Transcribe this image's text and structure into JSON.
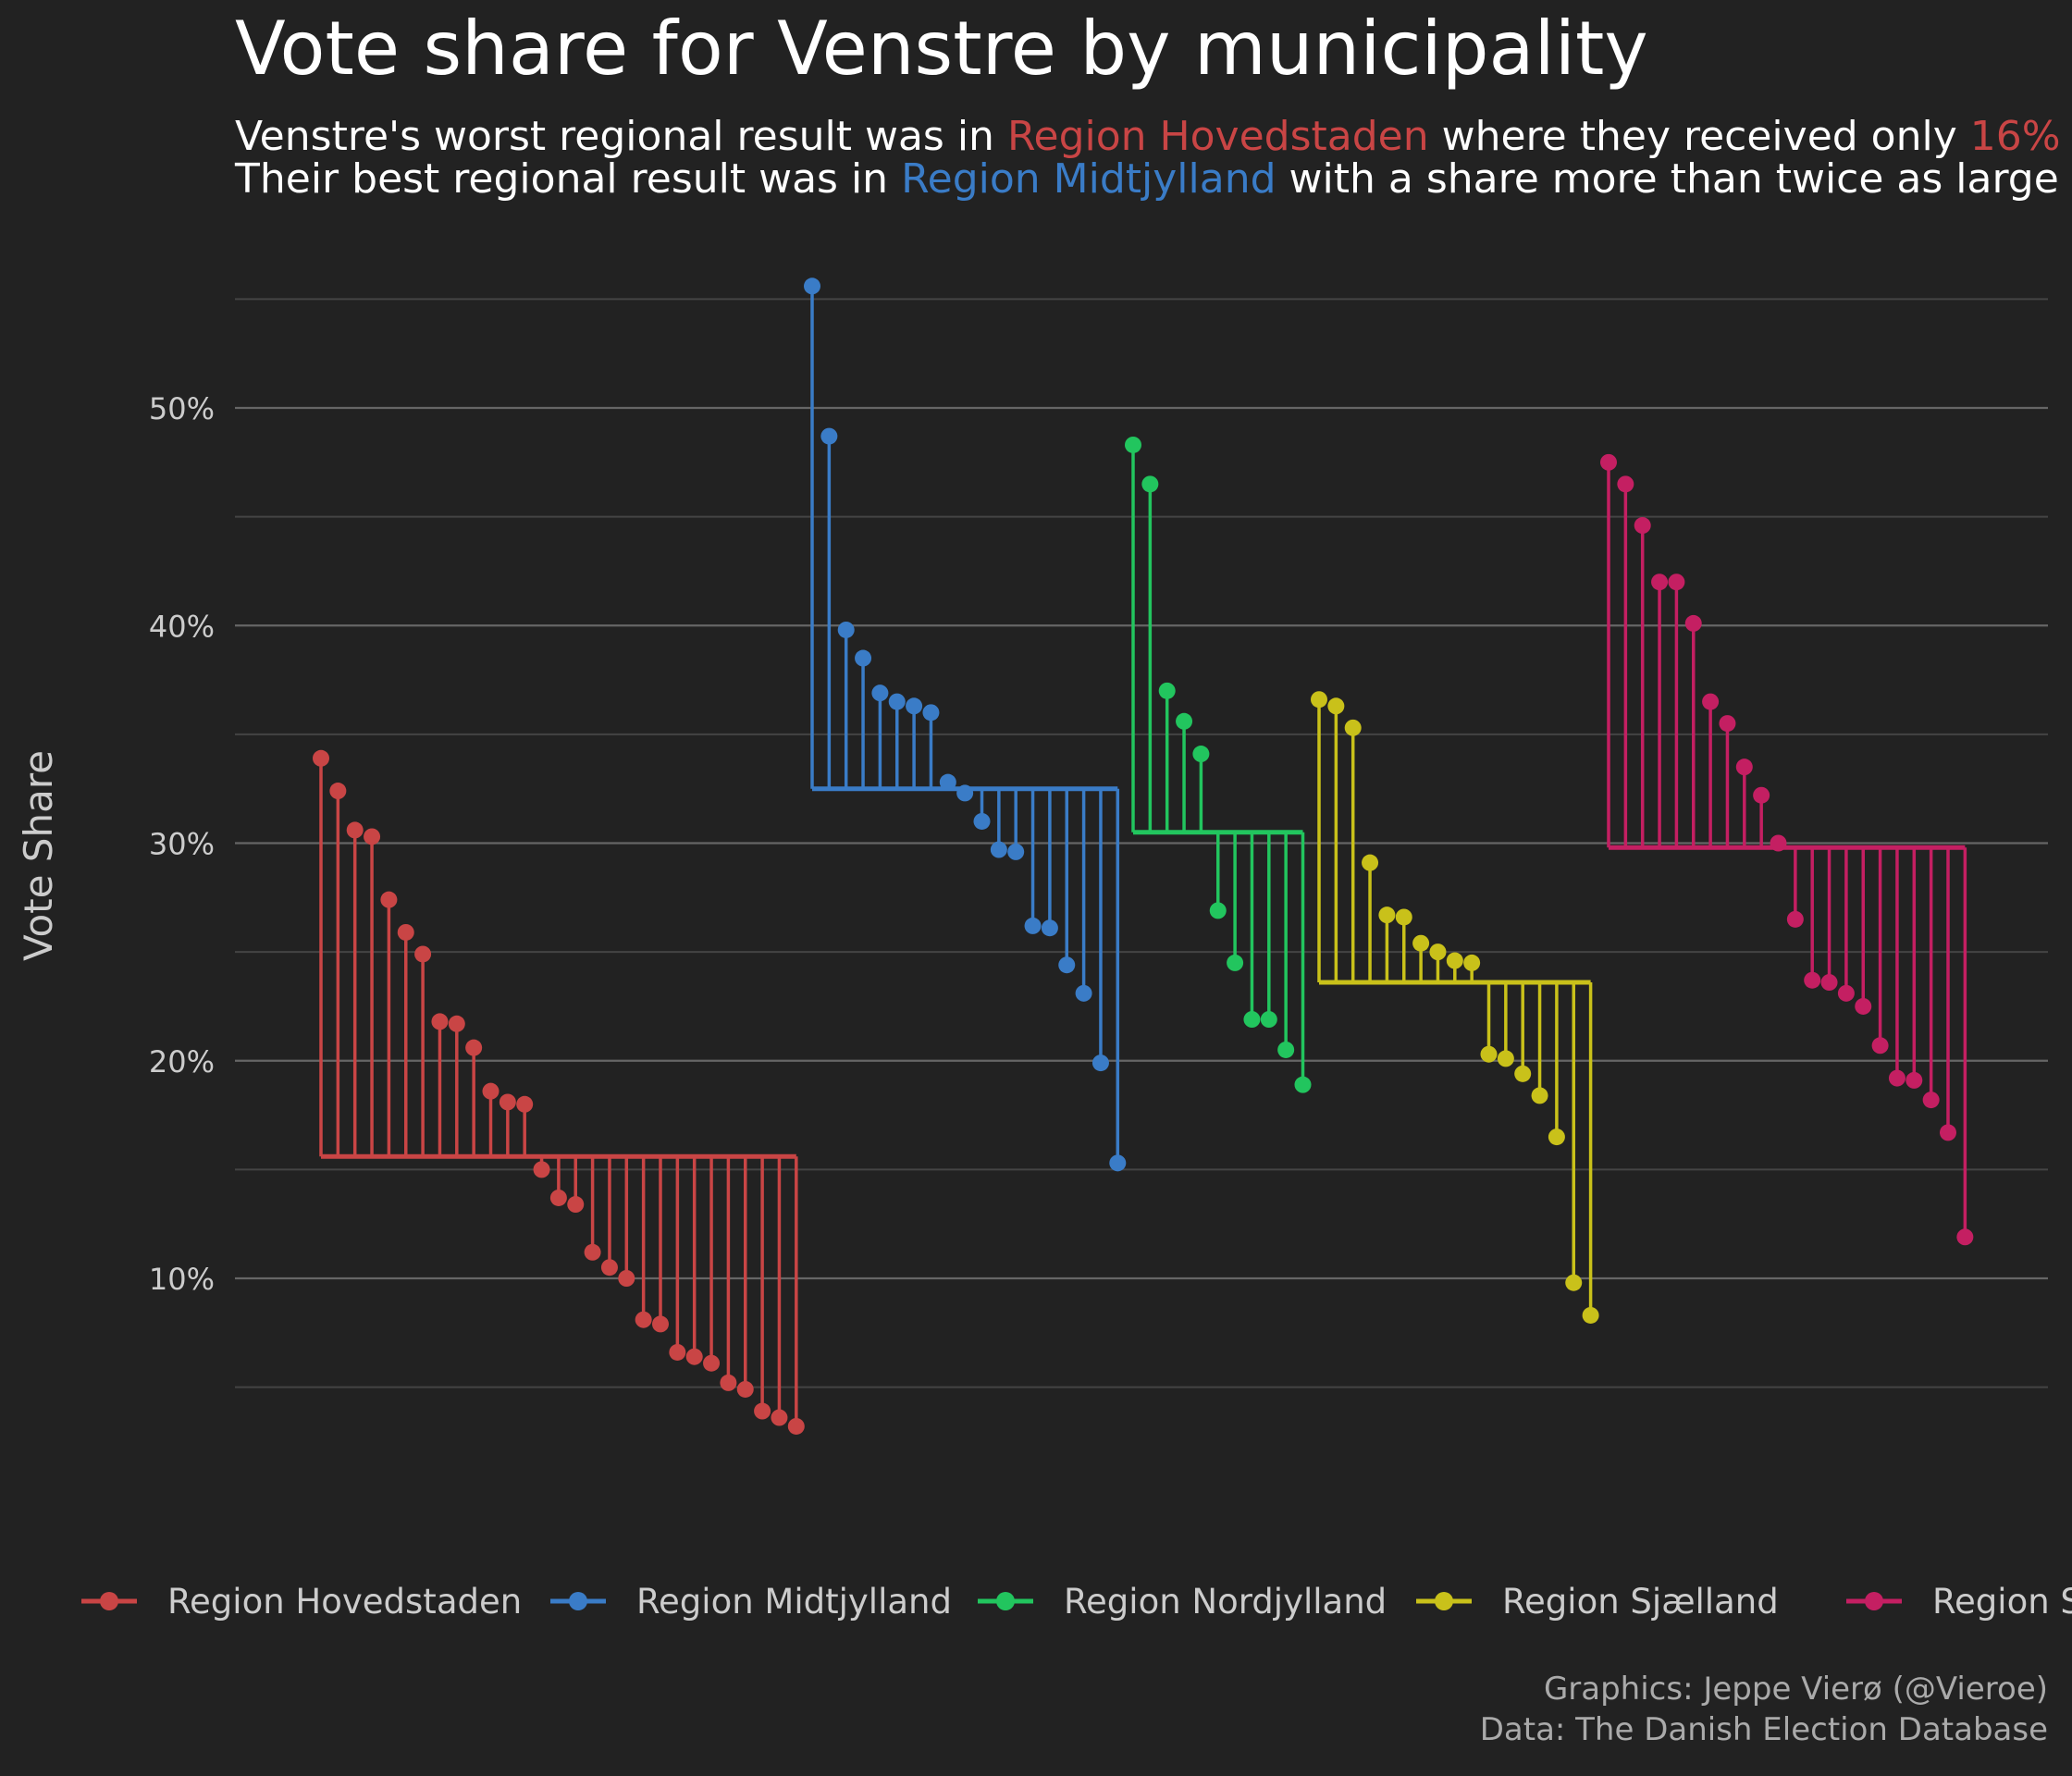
{
  "title": "Vote share for Venstre by municipality",
  "subtitle": {
    "line1": {
      "prefix": "Venstre's worst regional result was in ",
      "highlight": "Region Hovedstaden",
      "middle": " where they received only ",
      "highlight2": "16%"
    },
    "line2": {
      "prefix": "Their best regional result was in ",
      "highlight": "Region Midtjylland",
      "suffix": " with a share more than twice as large"
    }
  },
  "caption": {
    "line1": "Graphics: Jeppe Vierø (@Vieroe)",
    "line2": "Data: The Danish Election Database"
  },
  "colors": {
    "background": "#222222",
    "grid": "#666666",
    "grid_minor": "#444444",
    "text": "#ffffff",
    "muted": "#cccccc"
  },
  "chart_data": {
    "type": "lollipop",
    "ylabel": "Vote Share",
    "xlabel": "",
    "yticks": [
      "10%",
      "20%",
      "30%",
      "40%",
      "50%"
    ],
    "ytick_values": [
      10,
      20,
      30,
      40,
      50
    ],
    "ylim": [
      0,
      56
    ],
    "grid": true,
    "legend_position": "bottom",
    "series": [
      {
        "name": "Region Hovedstaden",
        "color": "#c94545",
        "mean": 15.6,
        "values": [
          33.9,
          32.4,
          30.6,
          30.3,
          27.4,
          25.9,
          24.9,
          21.8,
          21.7,
          20.6,
          18.6,
          18.1,
          18.0,
          15.0,
          13.7,
          13.4,
          11.2,
          10.5,
          10.0,
          8.1,
          7.9,
          6.6,
          6.4,
          6.1,
          5.2,
          4.9,
          3.9,
          3.6,
          3.2
        ]
      },
      {
        "name": "Region Midtjylland",
        "color": "#3a7cc7",
        "mean": 32.5,
        "values": [
          55.6,
          48.7,
          39.8,
          38.5,
          36.9,
          36.5,
          36.3,
          36.0,
          32.8,
          32.3,
          31.0,
          29.7,
          29.6,
          26.2,
          26.1,
          24.4,
          23.1,
          19.9,
          15.3
        ]
      },
      {
        "name": "Region Nordjylland",
        "color": "#22c55e",
        "mean": 30.5,
        "values": [
          48.3,
          46.5,
          37.0,
          35.6,
          34.1,
          26.9,
          24.5,
          21.9,
          21.9,
          20.5,
          18.9
        ]
      },
      {
        "name": "Region Sjælland",
        "color": "#c9c11a",
        "mean": 23.6,
        "values": [
          36.6,
          36.3,
          35.3,
          29.1,
          26.7,
          26.6,
          25.4,
          25.0,
          24.6,
          24.5,
          20.3,
          20.1,
          19.4,
          18.4,
          16.5,
          9.8,
          8.3
        ]
      },
      {
        "name": "Region Syddanmark",
        "legend_label": "Region Syd",
        "color": "#c41f62",
        "mean": 29.8,
        "values": [
          47.5,
          46.5,
          44.6,
          42.0,
          42.0,
          40.1,
          36.5,
          35.5,
          33.5,
          32.2,
          30.0,
          26.5,
          23.7,
          23.6,
          23.1,
          22.5,
          20.7,
          19.2,
          19.1,
          18.2,
          16.7,
          11.9
        ]
      }
    ]
  }
}
